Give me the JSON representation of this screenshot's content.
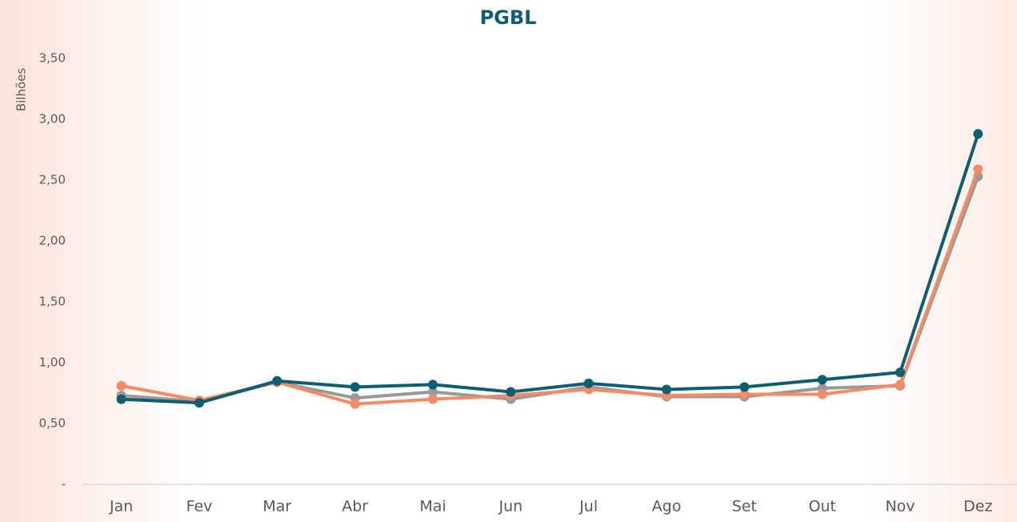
{
  "chart_data": {
    "type": "line",
    "title": "PGBL",
    "y_label": "Bilhões",
    "categories": [
      "Jan",
      "Fev",
      "Mar",
      "Abr",
      "Mai",
      "Jun",
      "Jul",
      "Ago",
      "Set",
      "Out",
      "Nov",
      "Dez"
    ],
    "series": [
      {
        "color": "#999999",
        "values": [
          0.73,
          0.68,
          0.84,
          0.71,
          0.76,
          0.7,
          0.8,
          0.72,
          0.72,
          0.79,
          0.81,
          2.53
        ]
      },
      {
        "color": "#f28b66",
        "values": [
          0.81,
          0.69,
          0.84,
          0.66,
          0.7,
          0.73,
          0.78,
          0.73,
          0.74,
          0.74,
          0.82,
          2.59
        ]
      },
      {
        "color": "#0e5e6f",
        "values": [
          0.7,
          0.67,
          0.85,
          0.8,
          0.82,
          0.76,
          0.83,
          0.78,
          0.8,
          0.86,
          0.92,
          2.88
        ]
      }
    ],
    "ylim": [
      0,
      3.5
    ],
    "yticks": [
      {
        "value": 0,
        "label": "-"
      },
      {
        "value": 0.5,
        "label": "0,50"
      },
      {
        "value": 1,
        "label": "1,00"
      },
      {
        "value": 1.5,
        "label": "1,50"
      },
      {
        "value": 2,
        "label": "2,00"
      },
      {
        "value": 2.5,
        "label": "2,50"
      },
      {
        "value": 3,
        "label": "3,00"
      },
      {
        "value": 3.5,
        "label": "3,50"
      }
    ],
    "grid": false
  }
}
